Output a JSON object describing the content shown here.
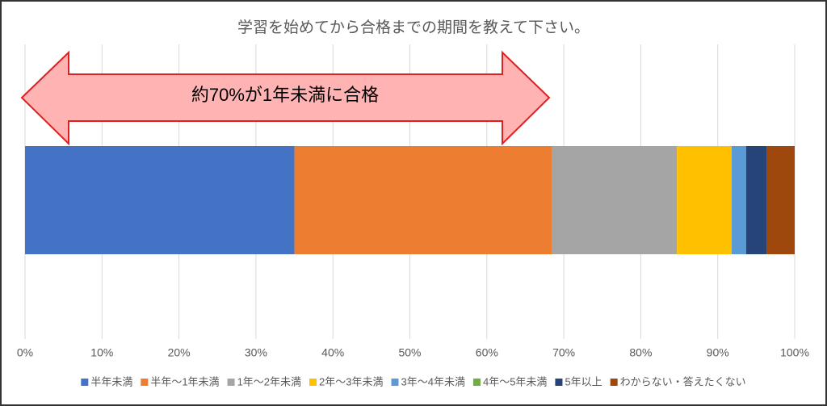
{
  "chart_data": {
    "type": "stacked-barh",
    "title": "学習を始めてから合格までの期間を教えて下さい。",
    "annotation": "約70%が1年未満に合格",
    "categories": [
      null
    ],
    "series": [
      {
        "name": "半年未満",
        "color": "#4472c4",
        "values": [
          35.0
        ]
      },
      {
        "name": "半年～1年未満",
        "color": "#ed7d31",
        "values": [
          33.5
        ]
      },
      {
        "name": "1年～2年未満",
        "color": "#a5a5a5",
        "values": [
          16.2
        ]
      },
      {
        "name": "2年～3年未満",
        "color": "#ffc000",
        "values": [
          7.1
        ]
      },
      {
        "name": "3年～4年未満",
        "color": "#5b9bd5",
        "values": [
          1.9
        ]
      },
      {
        "name": "4年～5年未満",
        "color": "#70ad47",
        "values": [
          0
        ]
      },
      {
        "name": "5年以上",
        "color": "#264478",
        "values": [
          2.7
        ]
      },
      {
        "name": "わからない・答えたくない",
        "color": "#9e480e",
        "values": [
          3.6
        ]
      }
    ],
    "xlim": [
      0,
      100
    ],
    "xticks": [
      {
        "value": 0,
        "label": "0%"
      },
      {
        "value": 10,
        "label": "10%"
      },
      {
        "value": 20,
        "label": "20%"
      },
      {
        "value": 30,
        "label": "30%"
      },
      {
        "value": 40,
        "label": "40%"
      },
      {
        "value": 50,
        "label": "50%"
      },
      {
        "value": 60,
        "label": "60%"
      },
      {
        "value": 70,
        "label": "70%"
      },
      {
        "value": 80,
        "label": "80%"
      },
      {
        "value": 90,
        "label": "90%"
      },
      {
        "value": 100,
        "label": "100%"
      }
    ],
    "grid": true,
    "legend": "bottom"
  }
}
